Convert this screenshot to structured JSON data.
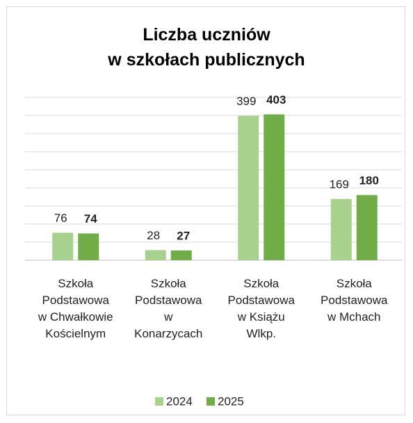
{
  "chart_data": {
    "type": "bar",
    "title": "Liczba uczniów\nw szkołach publicznych",
    "categories": [
      "Szkoła Podstawowa w Chwałkowie Kościelnym",
      "Szkoła Podstawowa w Konarzycach",
      "Szkoła Podstawowa w Książu Wlkp.",
      "Szkoła Podstawowa w Mchach"
    ],
    "series": [
      {
        "name": "2024",
        "color": "#a9d18e",
        "values": [
          76,
          28,
          399,
          169
        ]
      },
      {
        "name": "2025",
        "color": "#70ad47",
        "values": [
          74,
          27,
          403,
          180
        ]
      }
    ],
    "ylim": [
      0,
      450
    ],
    "yticks": [
      0,
      50,
      100,
      150,
      200,
      250,
      300,
      350,
      400,
      450
    ],
    "grid": true,
    "legend": "bottom"
  }
}
